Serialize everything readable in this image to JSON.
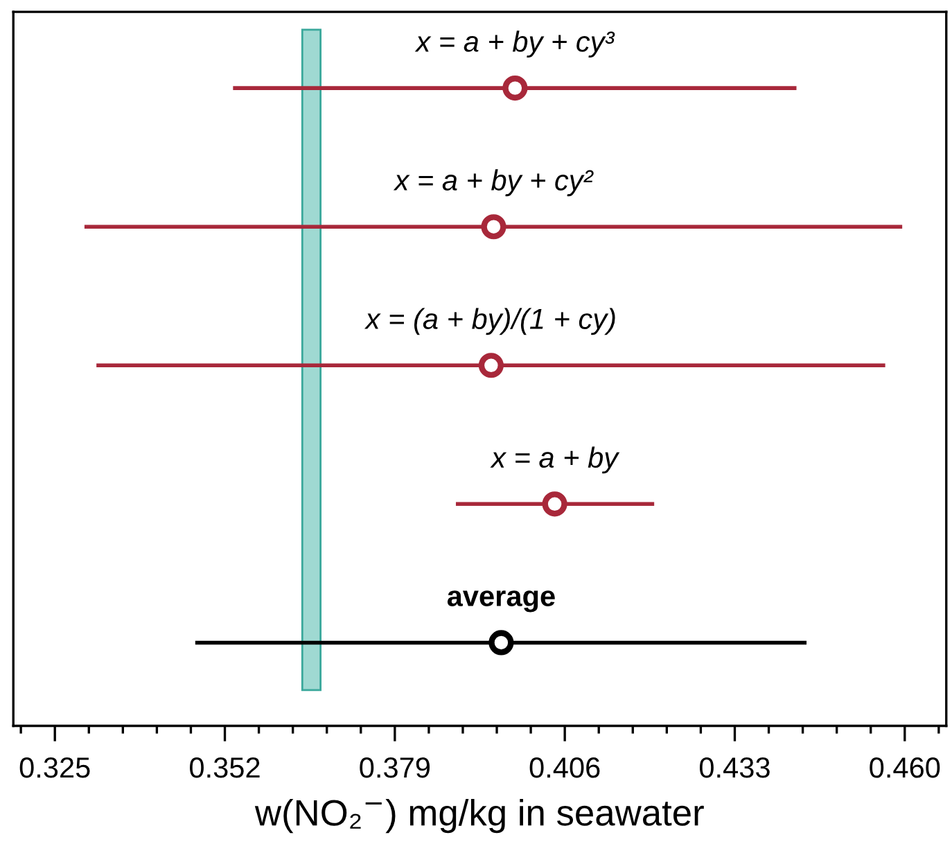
{
  "chart_data": {
    "type": "scatter",
    "orientation": "horizontal",
    "xlabel": "w(NO₂$^{−}$) mg/kg in seawater",
    "categories": [
      "x = a + by + cy³",
      "x = a + by + cy²",
      "x = (a + by)/(1 + cy)",
      "x = a + by",
      "average"
    ],
    "values": [
      0.3981,
      0.3947,
      0.3943,
      0.4044,
      0.3959
    ],
    "errors": [
      [
        0.3533,
        0.4428
      ],
      [
        0.3297,
        0.4596
      ],
      [
        0.3316,
        0.4569
      ],
      [
        0.3887,
        0.4202
      ],
      [
        0.3473,
        0.4444
      ]
    ],
    "colors": [
      "#a8283a",
      "#a8283a",
      "#a8283a",
      "#a8283a",
      "#000000"
    ],
    "marker": "circle",
    "bands": [
      {
        "axis": "x",
        "from": 0.3643,
        "to": 0.3672,
        "color": "#9fd9d2"
      }
    ],
    "xlim": [
      0.3184,
      0.4666
    ],
    "xticks": [
      0.325,
      0.352,
      0.379,
      0.406,
      0.433,
      {
        "value": 0.46,
        "label": "0.460"
      }
    ],
    "grid": false,
    "legend": false
  }
}
